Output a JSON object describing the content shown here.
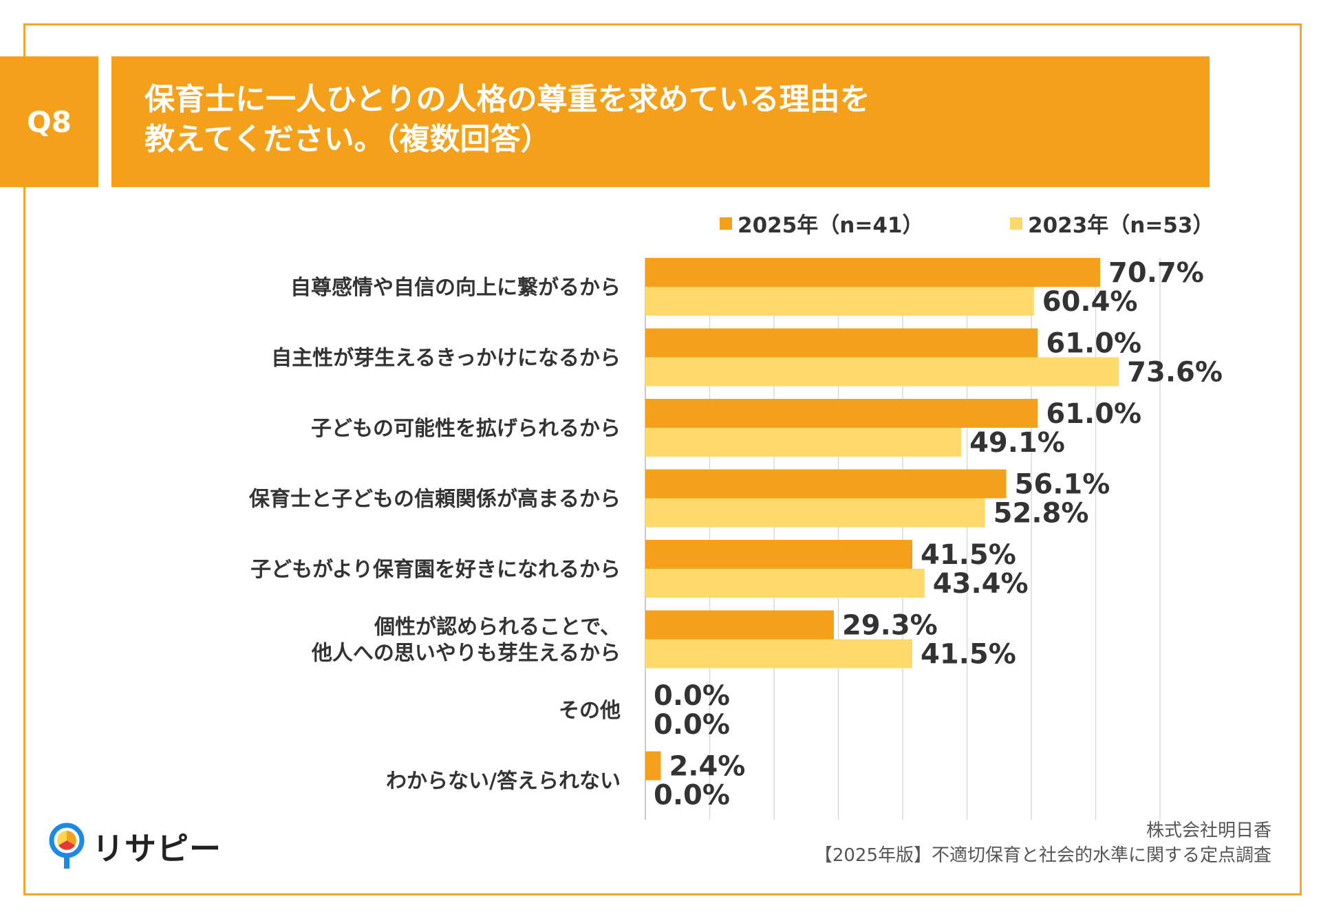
{
  "header": {
    "q_label": "Q8",
    "title_line1": "保育士に一人ひとりの人格の尊重を求めている理由を",
    "title_line2": "教えてください。（複数回答）"
  },
  "colors": {
    "accent": "#F5A01A",
    "series_2025": "#F5A01A",
    "series_2023": "#FFDA6A",
    "grid": "#D9D9D9",
    "frame": "#F5A623"
  },
  "chart_data": {
    "type": "bar",
    "orientation": "horizontal",
    "categories": [
      [
        "自尊感情や自信の向上に繋がるから"
      ],
      [
        "自主性が芽生えるきっかけになるから"
      ],
      [
        "子どもの可能性を拡げられるから"
      ],
      [
        "保育士と子どもの信頼関係が高まるから"
      ],
      [
        "子どもがより保育園を好きになれるから"
      ],
      [
        "個性が認められることで、",
        "他人への思いやりも芽生えるから"
      ],
      [
        "その他"
      ],
      [
        "わからない/答えられない"
      ]
    ],
    "series": [
      {
        "name": "2025年（n=41）",
        "values": [
          70.7,
          61.0,
          61.0,
          56.1,
          41.5,
          29.3,
          0.0,
          2.4
        ],
        "labels": [
          "70.7%",
          "61.0%",
          "61.0%",
          "56.1%",
          "41.5%",
          "29.3%",
          "0.0%",
          "2.4%"
        ]
      },
      {
        "name": "2023年（n=53）",
        "values": [
          60.4,
          73.6,
          49.1,
          52.8,
          43.4,
          41.5,
          0.0,
          0.0
        ],
        "labels": [
          "60.4%",
          "73.6%",
          "49.1%",
          "52.8%",
          "43.4%",
          "41.5%",
          "0.0%",
          "0.0%"
        ]
      }
    ],
    "xlim": [
      0,
      80
    ],
    "grid": true,
    "legend_position": "top-right"
  },
  "footer": {
    "company": "株式会社明日香",
    "survey": "【2025年版】不適切保育と社会的水準に関する定点調査"
  },
  "logo": {
    "text": "リサピー",
    "icon": "map-pin-icon"
  }
}
